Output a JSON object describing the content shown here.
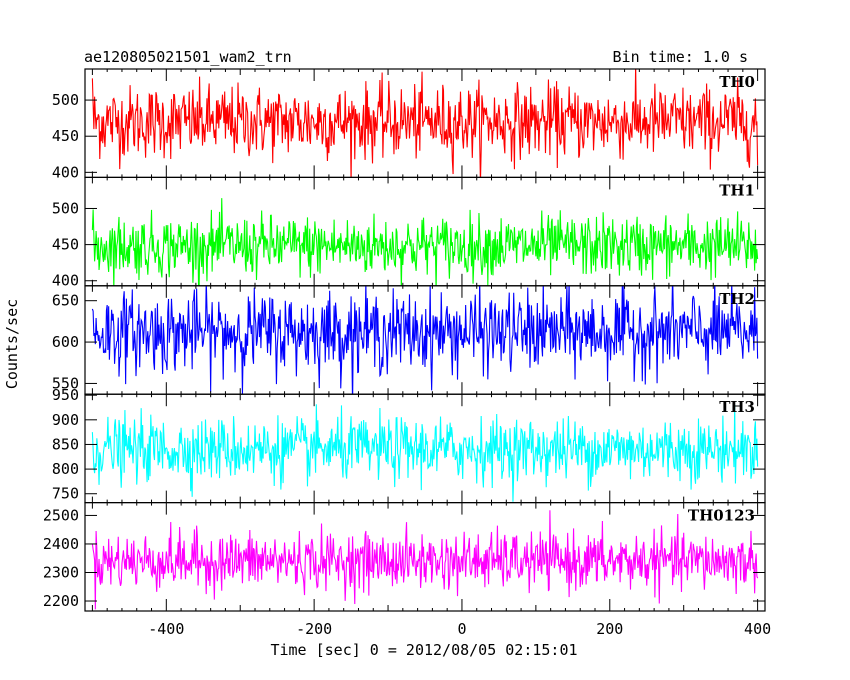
{
  "header": {
    "left_title": "ae120805021501_wam2_trn",
    "right_title": "Bin time: 1.0 s"
  },
  "chart_data": {
    "type": "line",
    "title": "ae120805021501_wam2_trn",
    "subtitle": "Bin time: 1.0 s",
    "xlabel": "Time [sec] 0 = 2012/08/05 02:15:01",
    "ylabel": "Counts/sec",
    "xlim": [
      -510,
      410
    ],
    "x_ticks": [
      -400,
      -200,
      0,
      200,
      400
    ],
    "x_range": [
      -500,
      400
    ],
    "bin_time_s": 1.0,
    "panels": [
      {
        "name": "TH0",
        "color": "#ff0000",
        "ylim": [
          393,
          543
        ],
        "y_ticks": [
          400,
          450,
          500
        ],
        "mean": 470,
        "std": 25,
        "edge_hi": 530,
        "edge_lo": 410
      },
      {
        "name": "TH1",
        "color": "#00ff00",
        "ylim": [
          393,
          543
        ],
        "y_ticks": [
          400,
          450,
          500
        ],
        "mean": 448,
        "std": 21,
        "edge_hi": 470,
        "edge_lo": 430
      },
      {
        "name": "TH2",
        "color": "#0000ff",
        "ylim": [
          537,
          668
        ],
        "y_ticks": [
          550,
          600,
          650
        ],
        "mean": 612,
        "std": 24,
        "edge_hi": 640,
        "edge_lo": 580
      },
      {
        "name": "TH3",
        "color": "#00ffff",
        "ylim": [
          732,
          952
        ],
        "y_ticks": [
          750,
          800,
          850,
          900,
          950
        ],
        "mean": 840,
        "std": 32,
        "edge_hi": 875,
        "edge_lo": 805
      },
      {
        "name": "TH0123",
        "color": "#ff00ff",
        "ylim": [
          2165,
          2545
        ],
        "y_ticks": [
          2200,
          2300,
          2400,
          2500
        ],
        "mean": 2340,
        "std": 50,
        "edge_hi": 2400,
        "edge_lo": 2280
      }
    ],
    "grid": false
  }
}
